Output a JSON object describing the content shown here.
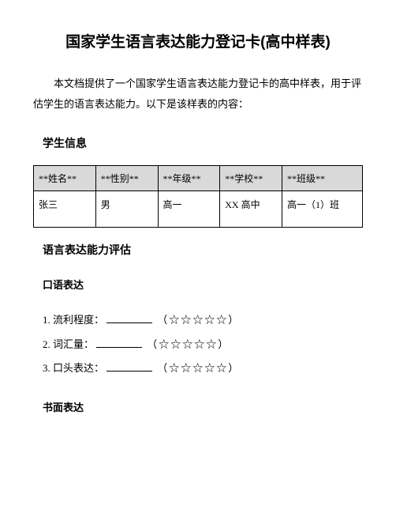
{
  "title": "国家学生语言表达能力登记卡(高中样表)",
  "intro": "本文档提供了一个国家学生语言表达能力登记卡的高中样表，用于评估学生的语言表达能力。以下是该样表的内容：",
  "section1": {
    "heading": "学生信息",
    "headers": [
      "**姓名**",
      "**性别**",
      "**年级**",
      "**学校**",
      "**班级**"
    ],
    "row": [
      "张三",
      "男",
      "高一",
      "XX 高中",
      "高一（1）班"
    ]
  },
  "section2": {
    "heading": "语言表达能力评估",
    "sub1": {
      "heading": "口语表达",
      "items": [
        {
          "num": "1.",
          "label": "流利程度：",
          "stars": "（☆☆☆☆☆）"
        },
        {
          "num": "2.",
          "label": "词汇量：",
          "stars": "（☆☆☆☆☆）"
        },
        {
          "num": "3.",
          "label": "口头表达：",
          "stars": "（☆☆☆☆☆）"
        }
      ]
    },
    "sub2": {
      "heading": "书面表达"
    }
  }
}
